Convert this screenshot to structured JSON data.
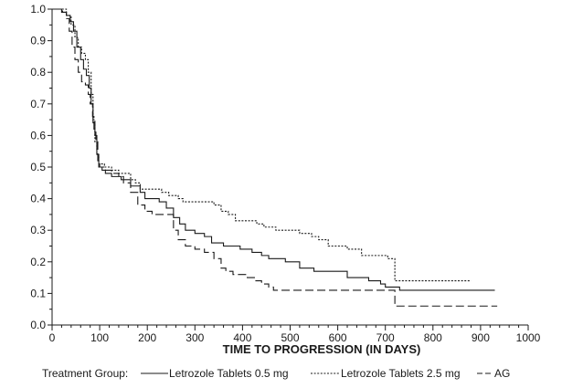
{
  "chart_data": {
    "type": "line",
    "title": "",
    "xlabel": "TIME TO PROGRESSION (IN DAYS)",
    "ylabel": "",
    "xlim": [
      0,
      1000
    ],
    "ylim": [
      0,
      1.0
    ],
    "x_ticks": [
      "0",
      "100",
      "200",
      "300",
      "400",
      "500",
      "600",
      "700",
      "800",
      "900",
      "1000"
    ],
    "y_ticks": [
      "0.0",
      "0.1",
      "0.2",
      "0.3",
      "0.4",
      "0.5",
      "0.6",
      "0.7",
      "0.8",
      "0.9",
      "1.0"
    ],
    "grid": false,
    "legend_title": "Treatment Group:",
    "legend_position": "bottom",
    "series": [
      {
        "name": "Letrozole Tablets 0.5 mg",
        "style": "solid",
        "color": "#1a1a1a",
        "points": [
          [
            0,
            1.0
          ],
          [
            15,
            1.0
          ],
          [
            20,
            0.99
          ],
          [
            30,
            0.98
          ],
          [
            38,
            0.96
          ],
          [
            45,
            0.93
          ],
          [
            52,
            0.88
          ],
          [
            60,
            0.84
          ],
          [
            66,
            0.81
          ],
          [
            72,
            0.79
          ],
          [
            78,
            0.75
          ],
          [
            82,
            0.7
          ],
          [
            86,
            0.64
          ],
          [
            90,
            0.6
          ],
          [
            94,
            0.54
          ],
          [
            98,
            0.5
          ],
          [
            105,
            0.49
          ],
          [
            112,
            0.48
          ],
          [
            125,
            0.47
          ],
          [
            135,
            0.47
          ],
          [
            145,
            0.46
          ],
          [
            155,
            0.46
          ],
          [
            165,
            0.44
          ],
          [
            175,
            0.44
          ],
          [
            185,
            0.42
          ],
          [
            195,
            0.4
          ],
          [
            210,
            0.4
          ],
          [
            225,
            0.39
          ],
          [
            240,
            0.37
          ],
          [
            255,
            0.34
          ],
          [
            268,
            0.32
          ],
          [
            280,
            0.3
          ],
          [
            300,
            0.29
          ],
          [
            320,
            0.28
          ],
          [
            335,
            0.26
          ],
          [
            360,
            0.25
          ],
          [
            395,
            0.24
          ],
          [
            420,
            0.23
          ],
          [
            440,
            0.22
          ],
          [
            455,
            0.21
          ],
          [
            490,
            0.2
          ],
          [
            520,
            0.18
          ],
          [
            550,
            0.17
          ],
          [
            600,
            0.17
          ],
          [
            620,
            0.15
          ],
          [
            650,
            0.15
          ],
          [
            665,
            0.14
          ],
          [
            690,
            0.13
          ],
          [
            700,
            0.12
          ],
          [
            730,
            0.11
          ],
          [
            930,
            0.11
          ]
        ]
      },
      {
        "name": "Letrozole Tablets 2.5 mg",
        "style": "dotted",
        "color": "#1a1a1a",
        "points": [
          [
            0,
            1.0
          ],
          [
            20,
            1.0
          ],
          [
            30,
            0.98
          ],
          [
            40,
            0.95
          ],
          [
            48,
            0.91
          ],
          [
            55,
            0.88
          ],
          [
            62,
            0.86
          ],
          [
            70,
            0.84
          ],
          [
            76,
            0.8
          ],
          [
            82,
            0.73
          ],
          [
            86,
            0.65
          ],
          [
            90,
            0.58
          ],
          [
            94,
            0.54
          ],
          [
            98,
            0.51
          ],
          [
            110,
            0.5
          ],
          [
            125,
            0.49
          ],
          [
            140,
            0.48
          ],
          [
            155,
            0.48
          ],
          [
            165,
            0.46
          ],
          [
            175,
            0.45
          ],
          [
            185,
            0.43
          ],
          [
            195,
            0.43
          ],
          [
            230,
            0.42
          ],
          [
            245,
            0.41
          ],
          [
            265,
            0.4
          ],
          [
            275,
            0.39
          ],
          [
            320,
            0.39
          ],
          [
            340,
            0.38
          ],
          [
            355,
            0.36
          ],
          [
            370,
            0.35
          ],
          [
            385,
            0.33
          ],
          [
            415,
            0.33
          ],
          [
            430,
            0.32
          ],
          [
            445,
            0.31
          ],
          [
            470,
            0.3
          ],
          [
            520,
            0.29
          ],
          [
            545,
            0.28
          ],
          [
            560,
            0.27
          ],
          [
            580,
            0.25
          ],
          [
            620,
            0.24
          ],
          [
            650,
            0.22
          ],
          [
            705,
            0.21
          ],
          [
            720,
            0.14
          ],
          [
            880,
            0.14
          ]
        ]
      },
      {
        "name": "AG",
        "style": "dashed",
        "color": "#1a1a1a",
        "points": [
          [
            0,
            1.0
          ],
          [
            15,
            1.0
          ],
          [
            22,
            0.99
          ],
          [
            30,
            0.97
          ],
          [
            36,
            0.93
          ],
          [
            42,
            0.88
          ],
          [
            48,
            0.84
          ],
          [
            55,
            0.8
          ],
          [
            62,
            0.77
          ],
          [
            70,
            0.76
          ],
          [
            76,
            0.73
          ],
          [
            80,
            0.7
          ],
          [
            85,
            0.66
          ],
          [
            88,
            0.62
          ],
          [
            92,
            0.58
          ],
          [
            96,
            0.52
          ],
          [
            100,
            0.5
          ],
          [
            112,
            0.49
          ],
          [
            125,
            0.48
          ],
          [
            140,
            0.47
          ],
          [
            150,
            0.45
          ],
          [
            165,
            0.42
          ],
          [
            180,
            0.38
          ],
          [
            195,
            0.36
          ],
          [
            210,
            0.35
          ],
          [
            240,
            0.35
          ],
          [
            255,
            0.3
          ],
          [
            265,
            0.27
          ],
          [
            280,
            0.25
          ],
          [
            300,
            0.24
          ],
          [
            320,
            0.23
          ],
          [
            340,
            0.21
          ],
          [
            355,
            0.18
          ],
          [
            365,
            0.17
          ],
          [
            380,
            0.16
          ],
          [
            410,
            0.15
          ],
          [
            425,
            0.14
          ],
          [
            440,
            0.13
          ],
          [
            455,
            0.12
          ],
          [
            465,
            0.11
          ],
          [
            710,
            0.11
          ],
          [
            720,
            0.06
          ],
          [
            935,
            0.06
          ]
        ]
      }
    ]
  }
}
